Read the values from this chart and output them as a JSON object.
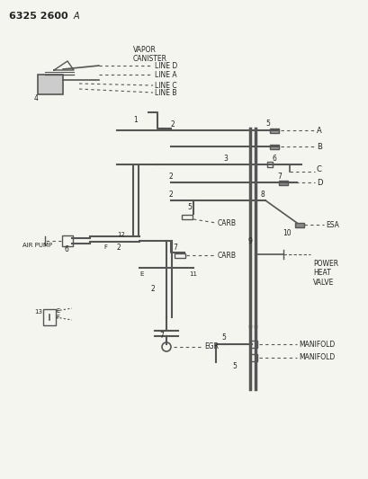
{
  "title": "6325 2600 A",
  "bg_color": "#f5f5f0",
  "line_color": "#555555",
  "text_color": "#222222",
  "labels": {
    "line_d": "LINE D",
    "line_a": "LINE A",
    "line_c": "LINE C",
    "line_b": "LINE B",
    "vapor_canister": "VAPOR\nCANISTER",
    "carb1": "CARB",
    "carb2": "CARB",
    "air_pump": "AIR PUMP",
    "egr": "EGR",
    "manifold1": "MANIFOLD",
    "manifold2": "MANIFOLD",
    "power_heat_valve": "POWER\nHEAT\nVALVE",
    "esa": "ESA",
    "a": "A",
    "b": "B",
    "c": "C",
    "d": "D"
  },
  "numbers": [
    "1",
    "2",
    "3",
    "4",
    "5",
    "6",
    "7",
    "8",
    "9",
    "10",
    "11",
    "12",
    "13",
    "2",
    "2",
    "2",
    "5",
    "5",
    "2",
    "7",
    "F",
    "E",
    "F",
    "E"
  ]
}
